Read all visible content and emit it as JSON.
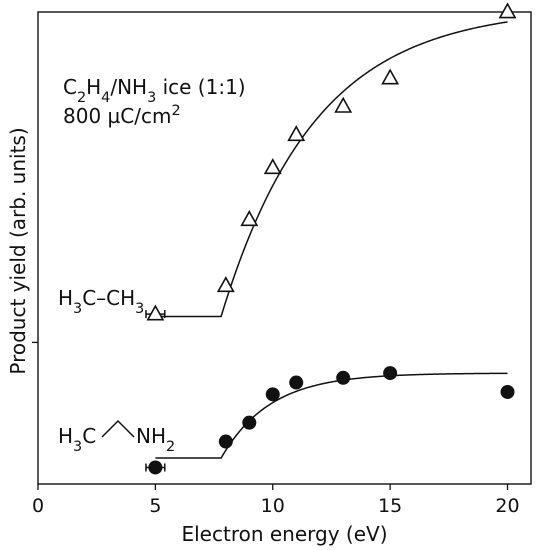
{
  "chart_data": {
    "type": "scatter",
    "xlabel": "Electron energy (eV)",
    "ylabel": "Product yield (arb. units)",
    "xlim": [
      0,
      21
    ],
    "x_ticks": [
      0,
      5,
      10,
      15,
      20
    ],
    "ylim": [
      0,
      1
    ],
    "y_ticks": [
      0.3
    ],
    "y_ticks_labeled": false,
    "grid": false,
    "legend": "none",
    "annotations": {
      "sample": [
        "C",
        "2",
        "H",
        "4",
        "/NH",
        "3",
        " ice (1:1)"
      ],
      "dose": [
        "800 µC/cm",
        "2"
      ]
    },
    "series": [
      {
        "name": "H3C-CH3",
        "label_parts": [
          "H",
          "3",
          "C–CH",
          "3"
        ],
        "marker": "open-triangle",
        "x": [
          5,
          8,
          9,
          10,
          11,
          13,
          15,
          20
        ],
        "y": [
          0.36,
          0.42,
          0.56,
          0.67,
          0.74,
          0.8,
          0.86,
          1.0
        ],
        "x_error_at_threshold": 0.4,
        "fit": {
          "threshold": 7.8,
          "baseline": 0.355,
          "plateau": 1.01,
          "k": 0.25,
          "x_start": 5,
          "x_end": 20
        }
      },
      {
        "name": "H3C-NH2",
        "label_parts": [
          "H",
          "3",
          "C",
          "NH",
          "2"
        ],
        "marker": "filled-circle",
        "x": [
          5,
          8,
          9,
          10,
          11,
          13,
          15,
          20
        ],
        "y": [
          0.035,
          0.09,
          0.13,
          0.19,
          0.215,
          0.225,
          0.235,
          0.195
        ],
        "x_error_at_threshold": 0.4,
        "fit": {
          "threshold": 7.8,
          "baseline": 0.055,
          "plateau": 0.235,
          "k": 0.48,
          "x_start": 5,
          "x_end": 20
        }
      }
    ]
  }
}
